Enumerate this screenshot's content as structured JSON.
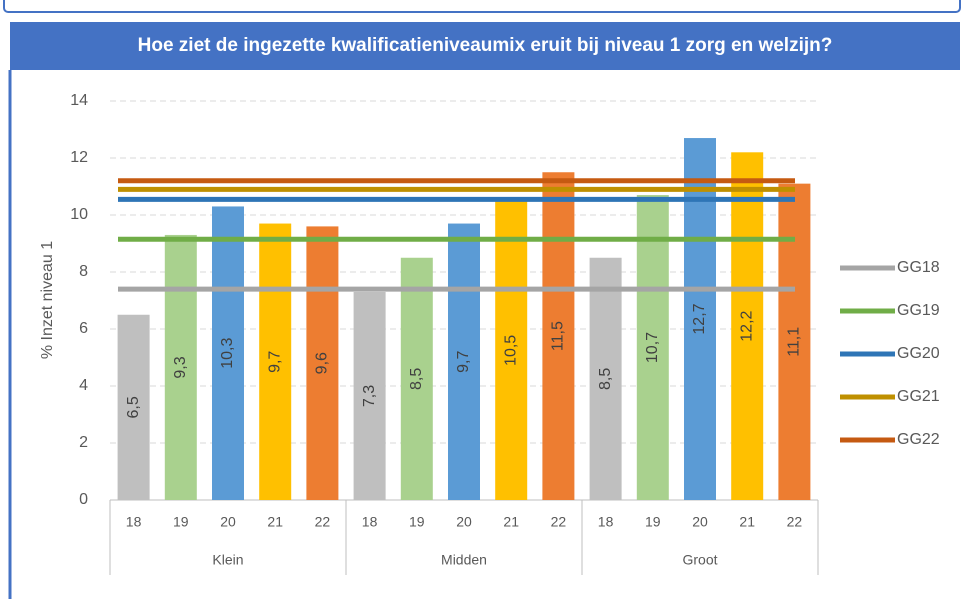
{
  "chart_data": {
    "type": "bar",
    "title": "Hoe ziet de ingezette kwalificatieniveaumix eruit bij niveau 1 zorg en welzijn?",
    "ylabel": "% Inzet niveau 1",
    "ylim": [
      0,
      14
    ],
    "yticks": [
      0,
      2,
      4,
      6,
      8,
      10,
      12,
      14
    ],
    "grid": true,
    "legend": "right",
    "bar_colors": [
      "#bfbfbf",
      "#a9d18e",
      "#5b9bd5",
      "#ffc000",
      "#ed7d31"
    ],
    "groups": [
      {
        "name": "Klein",
        "categories": [
          "18",
          "19",
          "20",
          "21",
          "22"
        ],
        "values": [
          6.5,
          9.3,
          10.3,
          9.7,
          9.6
        ],
        "value_labels": [
          "6,5",
          "9,3",
          "10,3",
          "9,7",
          "9,6"
        ]
      },
      {
        "name": "Midden",
        "categories": [
          "18",
          "19",
          "20",
          "21",
          "22"
        ],
        "values": [
          7.3,
          8.5,
          9.7,
          10.5,
          11.5
        ],
        "value_labels": [
          "7,3",
          "8,5",
          "9,7",
          "10,5",
          "11,5"
        ]
      },
      {
        "name": "Groot",
        "categories": [
          "18",
          "19",
          "20",
          "21",
          "22"
        ],
        "values": [
          8.5,
          10.7,
          12.7,
          12.2,
          11.1
        ],
        "value_labels": [
          "8,5",
          "10,7",
          "12,7",
          "12,2",
          "11,1"
        ]
      }
    ],
    "series": [
      {
        "name": "GG18",
        "color": "#a5a5a5",
        "value": 7.4
      },
      {
        "name": "GG19",
        "color": "#70ad47",
        "value": 9.15
      },
      {
        "name": "GG20",
        "color": "#2e75b6",
        "value": 10.55
      },
      {
        "name": "GG21",
        "color": "#bf9000",
        "value": 10.9
      },
      {
        "name": "GG22",
        "color": "#c55a11",
        "value": 11.2
      }
    ]
  }
}
